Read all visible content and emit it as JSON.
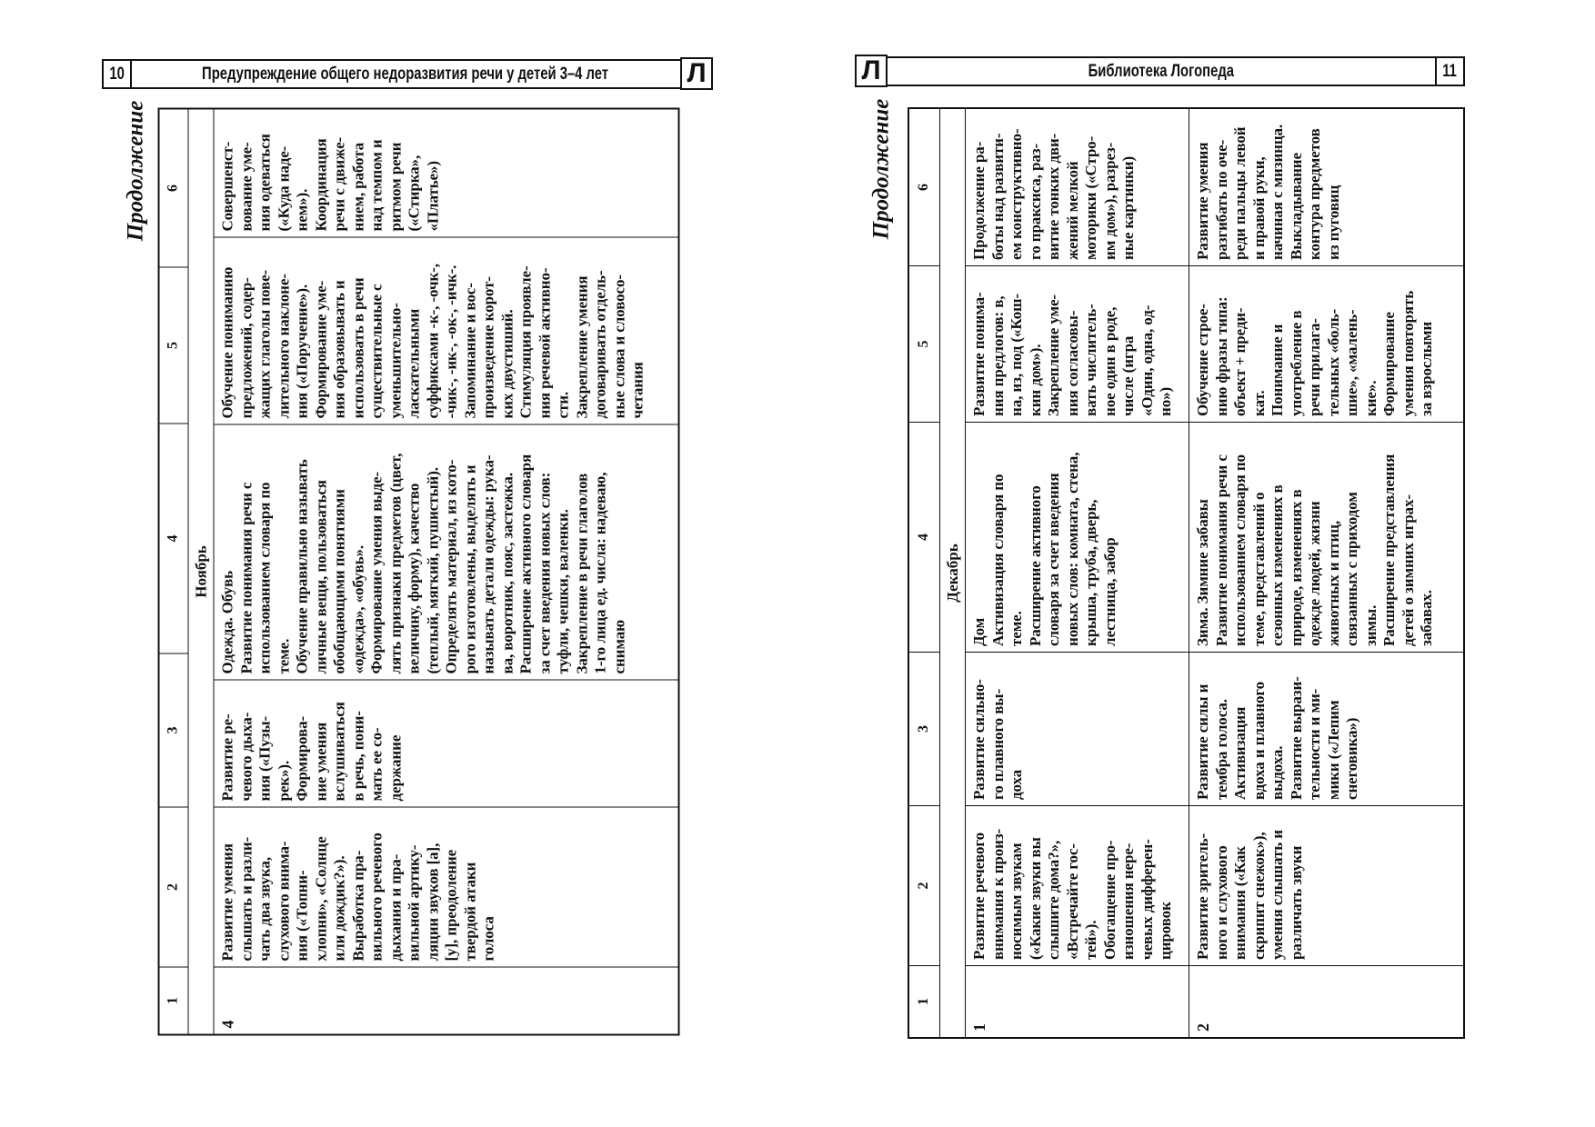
{
  "left_page": {
    "page_number": "10",
    "running_title": "Предупреждение общего недоразвития речи у детей 3–4 лет",
    "logo_letter": "Л",
    "continuation_label": "Продолжение",
    "column_numbers": [
      "1",
      "2",
      "3",
      "4",
      "5",
      "6"
    ],
    "month": "Ноябрь",
    "rows": [
      {
        "c1": "4",
        "c2": "Развитие умения\nслышать и разли-\nчать два звука,\nслухового внима-\nния («Топни-\nхлопни», «Солнце\nили дождик?»).\nВыработка пра-\nвильного речевого\nдыхания и пра-\nвильной артику-\nляции звуков [а],\n[у], преодоление\nтвердой атаки\nголоса",
        "c3": "Развитие ре-\nчевого дыха-\nния («Пузы-\nрек»).\nФормирова-\nние умения\nвслушиваться\nв речь, пони-\nмать ее со-\nдержание",
        "c4_title": "Одежда. Обувь",
        "c4": "Развитие понимания речи с\nиспользованием словаря по\nтеме.\nОбучение правильно называть\nличные вещи, пользоваться\nобобщающими понятиями\n«одежда», «обувь».\nФормирование умения выде-\nлять признаки предметов (цвет,\nвеличину, форму), качество\n(теплый, мягкий, пушистый).\nОпределять материал, из кото-\nрого изготовлены, выделять и\nназывать детали одежды: рука-\nва, воротник, пояс, застежка.\nРасширение активного словаря\nза счет введения новых слов:\nтуфли, чешки, валенки.\nЗакрепление в речи глаголов\n1-го лица ед. числа: надеваю,\nснимаю",
        "c5": "Обучение пониманию\nпредложений, содер-\nжащих глаголы пове-\nлительного наклоне-\nния («Поручение»).\nФормирование уме-\nния образовывать и\nиспользовать в речи\nсуществительные с\nуменьшительно-\nласкательными\nсуффиксами -к-, -очк-,\n-чик-, -ик-, -ок-, -ичк-.\nЗапоминание и вос-\nпроизведение корот-\nких двустиший.\nСтимуляция проявле-\nния речевой активно-\nсти.\nЗакрепление умения\nдоговаривать отдель-\nные слова и словосо-\nчетания",
        "c6": "Совершенст-\nвование уме-\nния одеваться\n(«Куда наде-\nнем»).\nКоординация\nречи с движе-\nнием, работа\nнад темпом и\nритмом речи\n(«Стирка»,\n«Платье»)"
      }
    ]
  },
  "right_page": {
    "page_number": "11",
    "running_title": "Библиотека Логопеда",
    "logo_letter": "Л",
    "continuation_label": "Продолжение",
    "column_numbers": [
      "1",
      "2",
      "3",
      "4",
      "5",
      "6"
    ],
    "month": "Декабрь",
    "rows": [
      {
        "c1": "1",
        "c2": "Развитие речевого\nвнимания к произ-\nносимым звукам\n(«Какие звуки вы\nслышите дома?»,\n«Встречайте гос-\nтей»).\nОбогащение про-\nизношения нере-\nчевых дифферен-\nцировок",
        "c3": "Развитие сильно-\nго плавного вы-\nдоха",
        "c4_title": "Дом",
        "c4": "Активизация словаря по\nтеме.\nРасширение активного\nсловаря за счет введения\nновых слов: комната, стена,\nкрыша, труба, дверь,\nлестница, забор",
        "c5": "Развитие понима-\nния предлогов: в,\nна, из, под («Кош-\nкин дом»).\nЗакрепление уме-\nния согласовы-\nвать числитель-\nное один в роде,\nчисле (игра\n«Один, одна, од-\nно»)",
        "c6": "Продолжение ра-\nботы над развити-\nем конструктивно-\nго праксиса, раз-\nвитие тонких дви-\nжений мелкой\nмоторики («Стро-\nим дом»), разрез-\nные картинки)"
      },
      {
        "c1": "2",
        "c2": "Развитие зритель-\nного и слухового\nвнимания («Как\nскрипит снежок»),\nумения слышать и\nразличать звуки",
        "c3": "Развитие силы и\nтембра голоса.\nАктивизация\nвдоха и плавного\nвыдоха.\nРазвитие вырази-\nтельности и ми-\nмики («Лепим\nснеговика»)",
        "c4_title": "Зима. Зимние забавы",
        "c4": "Развитие понимания речи с\nиспользованием словаря по\nтеме, представлений о\nсезонных изменениях в\nприроде, изменениях в\nодежде людей, жизни\nживотных и птиц,\nсвязанных с приходом\nзимы.\nРасширение представления\nдетей о зимних играх-\nзабавах.",
        "c5": "Обучение строе-\nнию фразы типа:\nобъект + преди-\nкат.\nПонимание и\nупотребление в\nречи прилага-\nтельных «боль-\nшие», «малень-\nкие».\nФормирование\nумения повторять\nза взрослыми",
        "c6": "Развитие умения\nразгибать по оче-\nреди пальцы левой\nи правой руки,\nначиная с мизинца.\nВыкладывание\nконтура предметов\nиз пуговиц"
      }
    ]
  }
}
